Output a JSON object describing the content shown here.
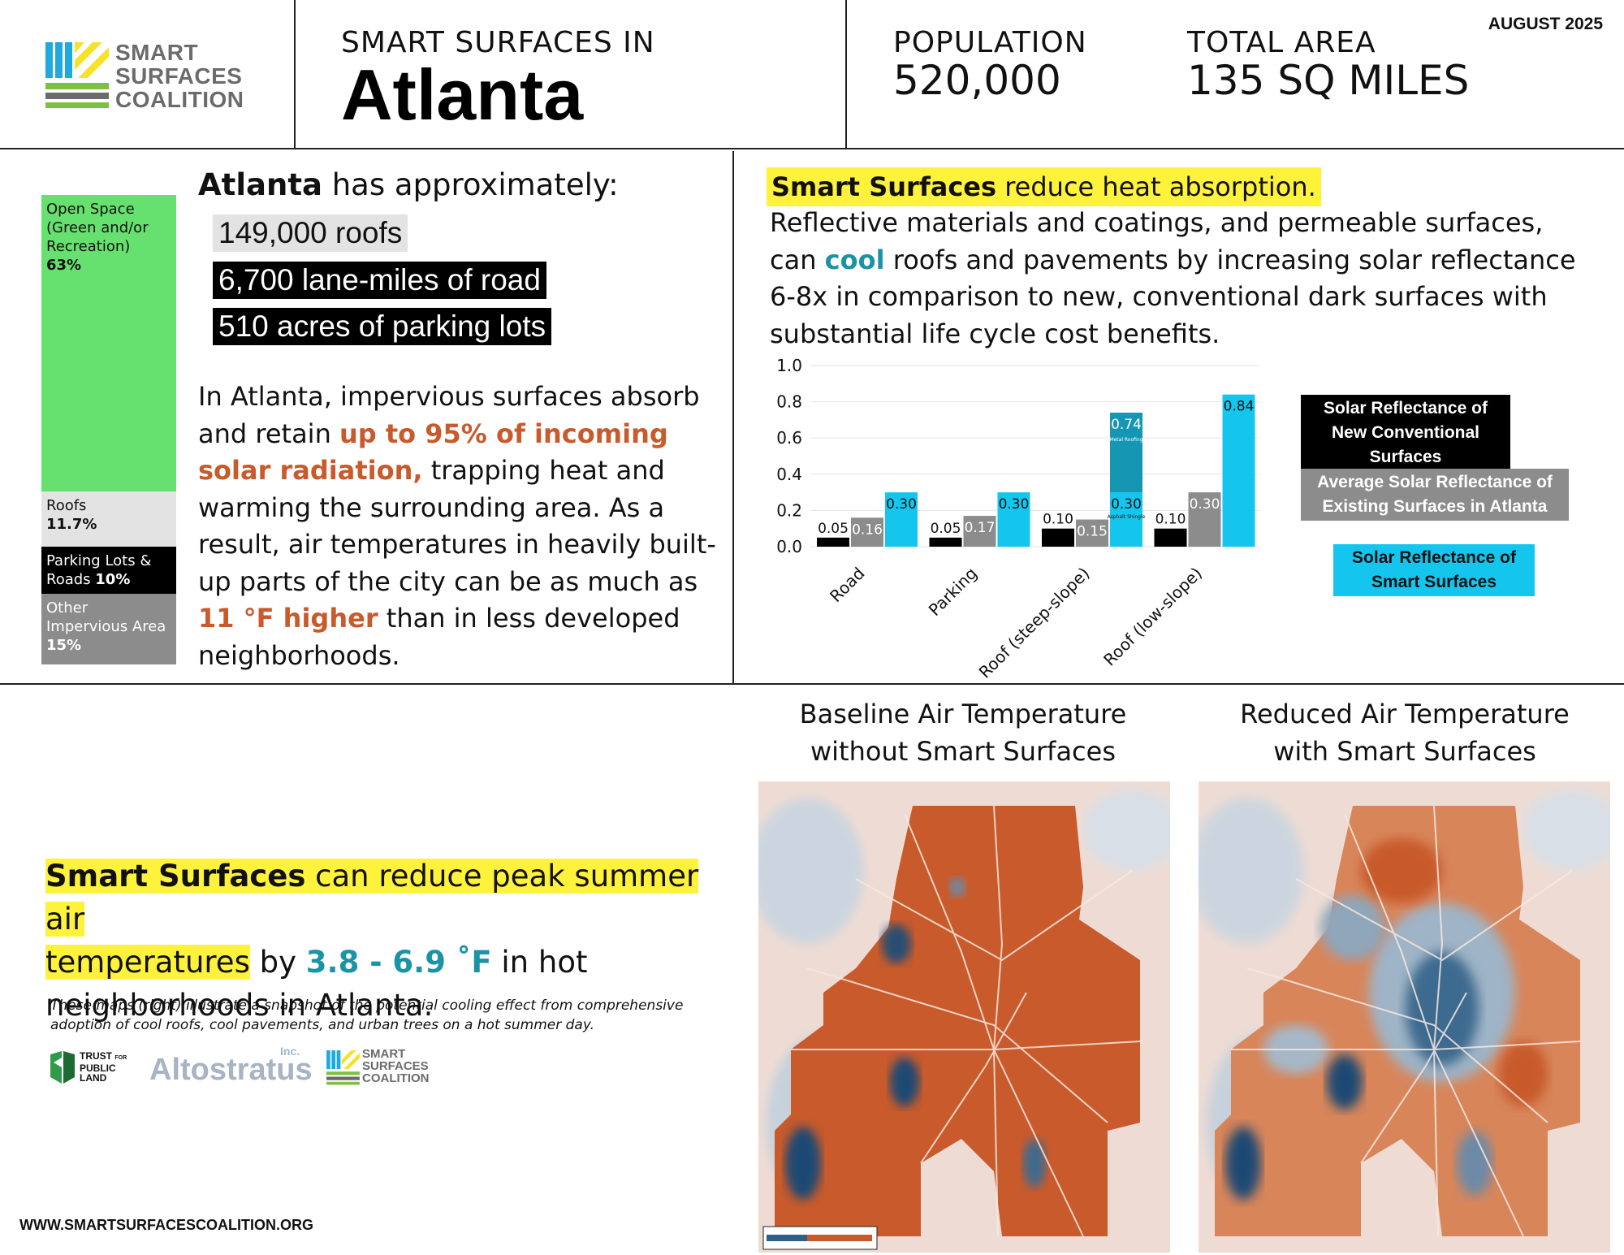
{
  "header": {
    "logo_lines": [
      "SMART",
      "SURFACES",
      "COALITION"
    ],
    "title_line": "SMART SURFACES IN",
    "city": "Atlanta",
    "population_label": "POPULATION",
    "population_value": "520,000",
    "area_label": "TOTAL AREA",
    "area_value": "135 SQ MILES",
    "date": "AUGUST 2025"
  },
  "land_use": {
    "segments": [
      {
        "label": "Open Space (Green and/or Recreation)",
        "percent": "63%",
        "value": 63,
        "color": "#66e06e",
        "text_color": "#111111"
      },
      {
        "label": "Roofs",
        "percent": "11.7%",
        "value": 11.7,
        "color": "#e3e3e3",
        "text_color": "#111111"
      },
      {
        "label": "Parking Lots & Roads",
        "percent": "10%",
        "value": 10,
        "color": "#000000",
        "text_color": "#ffffff"
      },
      {
        "label": "Other Impervious Area",
        "percent": "15%",
        "value": 15,
        "color": "#8c8c8c",
        "text_color": "#ffffff"
      }
    ]
  },
  "approx": {
    "city": "Atlanta",
    "rest": " has approximately:",
    "items": [
      "149,000 roofs",
      "6,700 lane-miles of road",
      "510 acres of parking lots"
    ]
  },
  "impervious": {
    "p1": "In Atlanta, impervious surfaces absorb and retain ",
    "h1": "up to 95% of incoming solar radiation,",
    "p2": " trapping heat and warming the surrounding area. As a result, air temperatures in heavily built-up parts of the city can be as much as ",
    "h2": "11 °F higher",
    "p3": " than in less developed neighborhoods."
  },
  "heat": {
    "bold": "Smart Surfaces",
    "rest": " reduce heat absorption.",
    "p1": "Reflective materials and coatings, and permeable surfaces, can ",
    "cool": "cool",
    "p2": " roofs and pavements by increasing solar reflectance 6-8x in comparison to new, conventional dark surfaces with substantial life cycle cost benefits."
  },
  "legend": {
    "new": "Solar Reflectance of New Conventional Surfaces",
    "existing": "Average Solar Reflectance of Existing Surfaces in Atlanta",
    "smart": "Solar Reflectance of Smart Surfaces"
  },
  "chart_data": {
    "type": "bar",
    "categories": [
      "Road",
      "Parking",
      "Roof (steep-slope)",
      "Roof (low-slope)"
    ],
    "series": [
      {
        "name": "Solar Reflectance of New Conventional Surfaces",
        "color": "#000000",
        "values": [
          0.05,
          0.05,
          0.1,
          0.1
        ],
        "labels": [
          "0.05",
          "0.05",
          "0.10",
          "0.10"
        ]
      },
      {
        "name": "Average Solar Reflectance of Existing Surfaces in Atlanta",
        "color": "#8c8c8c",
        "values": [
          0.16,
          0.17,
          0.15,
          0.3
        ],
        "labels": [
          "0.16",
          "0.17",
          "0.15",
          "0.30"
        ]
      },
      {
        "name": "Solar Reflectance of Smart Surfaces",
        "color": "#14c6ee",
        "values": [
          0.3,
          0.3,
          0.3,
          0.84
        ],
        "labels": [
          "0.30",
          "0.30",
          "0.30",
          "0.84"
        ]
      }
    ],
    "stacked_extra": {
      "category": "Roof (steep-slope)",
      "base": 0.3,
      "top": 0.74,
      "label": "0.74",
      "sublabel": "Metal Roofing",
      "base_sublabel": "Asphalt Shingle",
      "color": "#1597b3"
    },
    "yticks": [
      "0.0",
      "0.2",
      "0.4",
      "0.6",
      "0.8",
      "1.0"
    ],
    "ylim": [
      0,
      1.0
    ],
    "title": "",
    "xlabel": "",
    "ylabel": "",
    "grid": true
  },
  "reduce": {
    "bold": "Smart Surfaces",
    "hl_rest1": " can reduce peak summer air",
    "hl_rest2": "temperatures",
    "by": " by ",
    "range": "3.8 - 6.9 ˚F",
    "tail1": " in hot",
    "tail2": "neighborhoods in Atlanta."
  },
  "note": "These maps (right) illustrate a snapshot of the potential cooling effect from comprehensive adoption of cool roofs, cool pavements, and urban trees on a hot summer day.",
  "partners": {
    "tpl": [
      "TRUST",
      "PUBLIC",
      "LAND",
      "FOR"
    ],
    "alto": "Altostratus",
    "alto_inc": "Inc.",
    "ssc": [
      "SMART",
      "SURFACES",
      "COALITION"
    ]
  },
  "url": "WWW.SMARTSURFACESCOALITION.ORG",
  "maps": {
    "baseline_title_1": "Baseline Air Temperature",
    "baseline_title_2": "without Smart Surfaces",
    "reduced_title_1": "Reduced Air Temperature",
    "reduced_title_2": "with Smart Surfaces"
  }
}
